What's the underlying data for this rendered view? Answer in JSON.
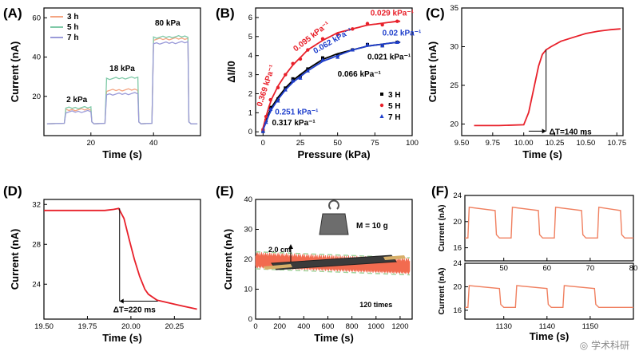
{
  "panels": {
    "A": {
      "label": "(A)"
    },
    "B": {
      "label": "(B)"
    },
    "C": {
      "label": "(C)"
    },
    "D": {
      "label": "(D)"
    },
    "E": {
      "label": "(E)"
    },
    "F": {
      "label": "(F)"
    }
  },
  "watermark": "◎ 学术科研",
  "chart_data": [
    {
      "id": "A",
      "type": "line",
      "xlabel": "Time (s)",
      "ylabel": "Current (nA)",
      "xlim": [
        5,
        55
      ],
      "ylim": [
        0,
        65
      ],
      "xticks": [
        20,
        40
      ],
      "yticks": [
        20,
        40,
        60
      ],
      "series": [
        {
          "name": "3 h",
          "color": "#f4a582",
          "levels": {
            "2": 13,
            "18": 23,
            "80": 49
          }
        },
        {
          "name": "5 h",
          "color": "#7fc9a7",
          "levels": {
            "2": 14,
            "18": 29,
            "80": 50
          }
        },
        {
          "name": "7 h",
          "color": "#9b9bd9",
          "levels": {
            "2": 12,
            "18": 21,
            "80": 47
          }
        }
      ],
      "steps": [
        {
          "start": 12,
          "end": 20
        },
        {
          "start": 25,
          "end": 35
        },
        {
          "start": 40,
          "end": 51
        }
      ],
      "baseline": 6,
      "annotations": [
        "2 kPa",
        "18 kPa",
        "80 kPa"
      ]
    },
    {
      "id": "B",
      "type": "scatter",
      "xlabel": "Pressure (kPa)",
      "ylabel": "ΔI/I0",
      "xlim": [
        -5,
        100
      ],
      "ylim": [
        -0.2,
        6.5
      ],
      "xticks": [
        0,
        25,
        50,
        75,
        100
      ],
      "yticks": [
        0,
        1,
        2,
        3,
        4,
        5,
        6
      ],
      "series": [
        {
          "name": "3 H",
          "color": "#000000",
          "marker": "square",
          "x": [
            0,
            2,
            5,
            10,
            15,
            20,
            25,
            30,
            40,
            50,
            60,
            70,
            80,
            90
          ],
          "y": [
            0.1,
            0.6,
            1.2,
            1.8,
            2.3,
            2.7,
            3.0,
            3.3,
            3.8,
            4.1,
            4.3,
            4.5,
            4.6,
            4.7
          ]
        },
        {
          "name": "5 H",
          "color": "#e8202a",
          "marker": "circle",
          "x": [
            0,
            2,
            5,
            10,
            15,
            20,
            25,
            30,
            40,
            50,
            60,
            70,
            80,
            90
          ],
          "y": [
            0.2,
            0.8,
            1.6,
            2.4,
            3.0,
            3.5,
            3.9,
            4.3,
            4.8,
            5.2,
            5.4,
            5.6,
            5.7,
            5.8
          ]
        },
        {
          "name": "7 H",
          "color": "#1f3fcc",
          "marker": "triangle",
          "x": [
            0,
            2,
            5,
            10,
            15,
            20,
            25,
            30,
            40,
            50,
            60,
            70,
            80,
            90
          ],
          "y": [
            0.1,
            0.5,
            1.1,
            1.7,
            2.2,
            2.6,
            2.9,
            3.2,
            3.7,
            4.0,
            4.3,
            4.5,
            4.6,
            4.7
          ]
        }
      ],
      "annotations": [
        {
          "text": "0.029 kPa⁻¹",
          "color": "#e8202a"
        },
        {
          "text": "0.095 kPa⁻¹",
          "color": "#e8202a"
        },
        {
          "text": "0.02 kPa⁻¹",
          "color": "#1f3fcc"
        },
        {
          "text": "0.062 kPa⁻¹",
          "color": "#1f3fcc"
        },
        {
          "text": "0.021 kPa⁻¹",
          "color": "#000000"
        },
        {
          "text": "0.066 kPa⁻¹",
          "color": "#000000"
        },
        {
          "text": "0.369 kPa⁻¹",
          "color": "#e8202a"
        },
        {
          "text": "0.251 kPa⁻¹",
          "color": "#1f3fcc"
        },
        {
          "text": "0.317 kPa⁻¹",
          "color": "#000000"
        }
      ]
    },
    {
      "id": "C",
      "type": "line",
      "xlabel": "Time (s)",
      "ylabel": "Current (nA)",
      "xlim": [
        9.5,
        10.8
      ],
      "ylim": [
        18.5,
        35
      ],
      "xticks": [
        9.5,
        9.75,
        10.0,
        10.25,
        10.5,
        10.75
      ],
      "yticks": [
        20,
        25,
        30,
        35
      ],
      "series": [
        {
          "name": "",
          "color": "#e8202a",
          "x": [
            9.6,
            9.8,
            10.0,
            10.04,
            10.08,
            10.12,
            10.15,
            10.18,
            10.22,
            10.3,
            10.4,
            10.5,
            10.6,
            10.7,
            10.78
          ],
          "y": [
            19.8,
            19.8,
            19.9,
            21.5,
            24.5,
            27.5,
            29.0,
            29.6,
            30.0,
            30.7,
            31.2,
            31.7,
            32.0,
            32.2,
            32.3
          ]
        }
      ],
      "annotations": [
        "ΔT=140 ms"
      ]
    },
    {
      "id": "D",
      "type": "line",
      "xlabel": "Time (s)",
      "ylabel": "Current (nA)",
      "xlim": [
        19.5,
        20.4
      ],
      "ylim": [
        20.5,
        32.5
      ],
      "xticks": [
        19.5,
        19.75,
        20.0,
        20.25
      ],
      "yticks": [
        24,
        28,
        32
      ],
      "series": [
        {
          "name": "",
          "color": "#e8202a",
          "x": [
            19.5,
            19.7,
            19.85,
            19.9,
            19.93,
            19.96,
            19.99,
            20.02,
            20.05,
            20.08,
            20.1,
            20.15,
            20.2,
            20.3,
            20.38
          ],
          "y": [
            31.4,
            31.4,
            31.4,
            31.5,
            31.6,
            30.6,
            28.5,
            26.5,
            24.8,
            23.5,
            23.0,
            22.4,
            22.2,
            21.8,
            21.5
          ]
        }
      ],
      "annotations": [
        "ΔT=220 ms"
      ]
    },
    {
      "id": "E",
      "type": "area",
      "xlabel": "Time (s)",
      "ylabel": "Current (nA)",
      "xlim": [
        0,
        1300
      ],
      "ylim": [
        0,
        40
      ],
      "xticks": [
        0,
        200,
        400,
        600,
        800,
        1000,
        1200
      ],
      "yticks": [
        0,
        10,
        20,
        30,
        40
      ],
      "band": {
        "color": "#f26b4f",
        "upper": [
          21,
          19
        ],
        "lower": [
          18,
          16
        ]
      },
      "annotations": [
        "M = 10 g",
        "2.0 cm",
        "120 times"
      ]
    },
    {
      "id": "F1",
      "type": "line",
      "xlabel": "",
      "ylabel": "Current (nA)",
      "xlim": [
        41,
        80
      ],
      "ylim": [
        14,
        24
      ],
      "xticks": [
        50,
        60,
        70,
        80
      ],
      "yticks": [
        16,
        20,
        24
      ],
      "series": [
        {
          "name": "",
          "color": "#f08060",
          "cycles": [
            [
              42,
              48
            ],
            [
              52,
              58
            ],
            [
              62,
              68
            ],
            [
              72,
              77
            ]
          ],
          "high": 22.5,
          "low": 17.5
        }
      ]
    },
    {
      "id": "F2",
      "type": "line",
      "xlabel": "Time (s)",
      "ylabel": "Current (nA)",
      "xlim": [
        1121,
        1160
      ],
      "ylim": [
        14.5,
        24
      ],
      "xticks": [
        1130,
        1140,
        1150
      ],
      "yticks": [
        16,
        20,
        24
      ],
      "series": [
        {
          "name": "",
          "color": "#f08060",
          "cycles": [
            [
              1122,
              1129
            ],
            [
              1133,
              1140
            ],
            [
              1144,
              1151
            ]
          ],
          "high": 20.5,
          "low": 16.5
        }
      ]
    }
  ]
}
